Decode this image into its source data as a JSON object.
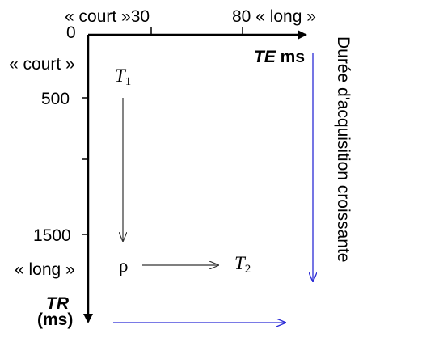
{
  "x_axis": {
    "tick_label_short": "« court »30",
    "tick_label_long": "80 « long »",
    "origin_label": "0",
    "title_symbol": "TE",
    "title_unit": " ms"
  },
  "y_axis": {
    "label_short": "« court »",
    "tick_500": "500",
    "tick_1500": "1500",
    "label_long": "« long »",
    "title_symbol": "TR",
    "title_unit": "(ms)"
  },
  "weightings": {
    "t1_symbol": "T",
    "t1_index": "1",
    "rho_symbol": "ρ",
    "t2_symbol": "T",
    "t2_index": "2"
  },
  "annotations": {
    "acquisition_duration": "Durée d'acquisition croissante"
  },
  "colors": {
    "axis": "#000000",
    "indicator_arrow": "#2b2bd6",
    "relation_arrow": "#333333"
  }
}
